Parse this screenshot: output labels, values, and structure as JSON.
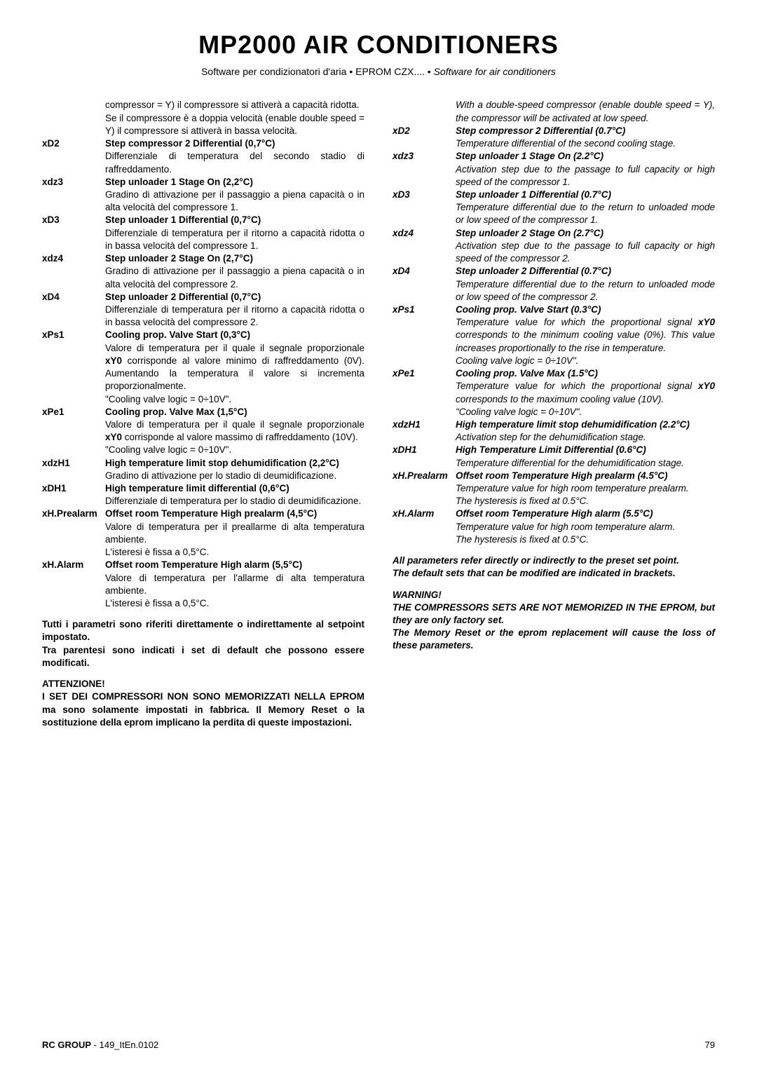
{
  "title": "MP2000 AIR CONDITIONERS",
  "subtitle_plain": "Software per condizionatori d'aria  •  EPROM CZX....  •  ",
  "subtitle_italic": "Software for air conditioners",
  "left": {
    "intro1": "compressor = Y) il compressore si attiverà a capacità ridotta.",
    "intro2": "Se il compressore è a doppia velocità (enable double speed = Y) il compressore si attiverà in bassa velocità.",
    "params": [
      {
        "label": "xD2",
        "title": "Step compressor 2 Differential (0,7°C)",
        "text": "Differenziale di temperatura del secondo stadio di raffreddamento."
      },
      {
        "label": "xdz3",
        "title": "Step unloader 1 Stage On (2,2°C)",
        "text": "Gradino di attivazione per il passaggio a piena capacità o in alta velocità del compressore 1."
      },
      {
        "label": "xD3",
        "title": "Step unloader 1 Differential (0,7°C)",
        "text": "Differenziale di temperatura per il ritorno a capacità ridotta o in bassa velocità del compressore 1."
      },
      {
        "label": "xdz4",
        "title": "Step unloader 2 Stage On (2,7°C)",
        "text": "Gradino di attivazione per il passaggio a piena capacità o in alta velocità del compressore 2."
      },
      {
        "label": "xD4",
        "title": "Step unloader 2 Differential (0,7°C)",
        "text": "Differenziale di temperatura per il ritorno a capacità ridotta o in bassa velocità del compressore 2."
      },
      {
        "label": "xPs1",
        "title": "Cooling prop. Valve Start (0,3°C)",
        "text": "Valore di temperatura per il quale il segnale proporzionale xY0 corrisponde al valore minimo di raffreddamento (0V). Aumentando la temperatura il valore si incrementa proporzionalmente.",
        "extra": "\"Cooling valve logic = 0÷10V\"."
      },
      {
        "label": "xPe1",
        "title": "Cooling prop. Valve Max (1,5°C)",
        "text": "Valore di temperatura per il quale il segnale proporzionale xY0 corrisponde al valore massimo di raffreddamento (10V).",
        "extra": "\"Cooling valve logic = 0÷10V\"."
      },
      {
        "label": "xdzH1",
        "title": "High   temperature   limit   stop dehumidification (2,2°C)",
        "text": "Gradino di attivazione per lo stadio di deumidificazione."
      },
      {
        "label": "xDH1",
        "title": "High temperature limit differential (0,6°C)",
        "text": "Differenziale di temperatura per lo stadio di deumidificazione."
      },
      {
        "label": "xH.Prealarm",
        "title": "Offset room Temperature High prealarm (4,5°C)",
        "text": "Valore di temperatura per il preallarme di alta temperatura ambiente.",
        "extra": "L'isteresi è fissa a 0,5°C."
      },
      {
        "label": "xH.Alarm",
        "title": "Offset room Temperature High alarm (5,5°C)",
        "text": "Valore di temperatura per l'allarme di alta temperatura ambiente.",
        "extra": "L'isteresi è fissa a 0,5°C."
      }
    ],
    "note1": "Tutti i parametri sono riferiti direttamente o indirettamente al setpoint impostato.",
    "note2": "Tra parentesi sono indicati i set di default che possono essere modificati.",
    "warn_title": "ATTENZIONE!",
    "warn_text": "I SET DEI COMPRESSORI NON SONO MEMORIZZATI NELLA EPROM ma sono solamente impostati in fabbrica. Il Memory Reset o la sostituzione della eprom implicano la perdita di queste impostazioni."
  },
  "right": {
    "intro": "With a double-speed compressor (enable double speed = Y), the compressor will be activated at low speed.",
    "params": [
      {
        "label": "xD2",
        "title": "Step compressor 2 Differential (0.7°C)",
        "text": "Temperature differential of the second cooling stage."
      },
      {
        "label": "xdz3",
        "title": "Step unloader 1 Stage On (2.2°C)",
        "text": "Activation step due to the passage to full capacity or high speed of the compressor 1."
      },
      {
        "label": "xD3",
        "title": "Step unloader 1 Differential (0.7°C)",
        "text": "Temperature differential due to the return to unloaded mode or low speed of the compressor 1."
      },
      {
        "label": "xdz4",
        "title": "Step unloader 2 Stage On (2.7°C)",
        "text": "Activation step due to the passage to full capacity or high speed of the compressor 2."
      },
      {
        "label": "xD4",
        "title": "Step unloader 2 Differential (0.7°C)",
        "text": "Temperature differential due to the return to unloaded mode or low speed of the compressor 2."
      },
      {
        "label": "xPs1",
        "title": "Cooling prop. Valve Start (0.3°C)",
        "text": "Temperature value for which the proportional signal xY0 corresponds to the minimum cooling value (0%). This value increases proportionally to the rise in temperature.",
        "extra": "Cooling valve logic = 0÷10V\"."
      },
      {
        "label": "xPe1",
        "title": "Cooling prop. Valve Max (1.5°C)",
        "text": "Temperature value for which the proportional signal xY0 corresponds to the maximum cooling value (10V).",
        "extra": "\"Cooling valve logic = 0÷10V\"."
      },
      {
        "label": "xdzH1",
        "title": "High temperature limit stop dehumidification (2.2°C)",
        "text": "Activation step for the dehumidification stage."
      },
      {
        "label": "xDH1",
        "title": "High Temperature Limit Differential (0.6°C)",
        "text": "Temperature differential for the dehumidification stage."
      },
      {
        "label": "xH.Prealarm",
        "title": "Offset room Temperature High prealarm (4.5°C)",
        "text": "Temperature value for high room temperature prealarm.",
        "extra": "The hysteresis is fixed at 0.5°C."
      },
      {
        "label": "xH.Alarm",
        "title": "Offset room Temperature High alarm (5.5°C)",
        "text": "Temperature value for high room temperature alarm.",
        "extra": "The hysteresis is fixed at 0.5°C."
      }
    ],
    "note1": "All parameters refer directly or indirectly to the preset set point.",
    "note2": "The default sets that can be modified are indicated in brackets.",
    "warn_title": "WARNING!",
    "warn_text": "THE COMPRESSORS SETS ARE NOT MEMORIZED IN THE EPROM, but they are only factory set.\nThe Memory Reset or the eprom replacement will cause the loss of these parameters."
  },
  "footer": {
    "left_bold": "RC GROUP",
    "left_rest": " - 149_ItEn.0102",
    "page": "79"
  }
}
